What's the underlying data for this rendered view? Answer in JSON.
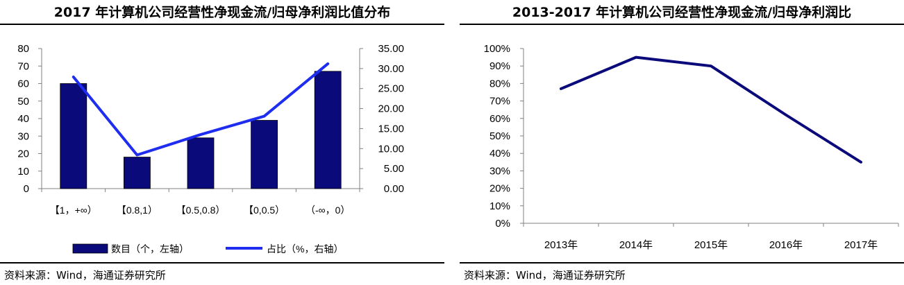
{
  "left": {
    "title": "2017 年计算机公司经营性净现金流/归母净利润比值分布",
    "source": "资料来源：Wind，海通证券研究所"
  },
  "right": {
    "title": "2013-2017 年计算机公司经营性净现金流/归母净利润比",
    "source": "资料来源：Wind，海通证券研究所"
  },
  "colors": {
    "bar": "#0a0a7a",
    "line_left": "#1e2df0",
    "line_right": "#0a0a7a",
    "axis": "#808080"
  },
  "chart_data": [
    {
      "type": "bar",
      "title": "2017 年计算机公司经营性净现金流/归母净利润比值分布",
      "categories": [
        "【1，+∞）",
        "【0.8,1）",
        "【0.5,0.8）",
        "【0,0.5）",
        "（-∞，0）"
      ],
      "series": [
        {
          "name": "数目（个，左轴）",
          "type": "bar",
          "axis": "left",
          "values": [
            60,
            18,
            29,
            39,
            67
          ]
        },
        {
          "name": "占比（%，右轴）",
          "type": "line",
          "axis": "right",
          "values": [
            27.9,
            8.4,
            13.5,
            18.1,
            31.2
          ]
        }
      ],
      "y_left": {
        "ylim": [
          0,
          80
        ],
        "ticks": [
          "0",
          "10",
          "20",
          "30",
          "40",
          "50",
          "60",
          "70",
          "80"
        ]
      },
      "y_right": {
        "ylim": [
          0,
          35
        ],
        "ticks": [
          "0.00",
          "5.00",
          "10.00",
          "15.00",
          "20.00",
          "25.00",
          "30.00",
          "35.00"
        ]
      },
      "grid": false,
      "legend_position": "bottom"
    },
    {
      "type": "line",
      "title": "2013-2017 年计算机公司经营性净现金流/归母净利润比",
      "categories": [
        "2013年",
        "2014年",
        "2015年",
        "2016年",
        "2017年"
      ],
      "series": [
        {
          "values": [
            77,
            95,
            90,
            62,
            35
          ]
        }
      ],
      "ylim": [
        0,
        100
      ],
      "y_ticks": [
        "0%",
        "10%",
        "20%",
        "30%",
        "40%",
        "50%",
        "60%",
        "70%",
        "80%",
        "90%",
        "100%"
      ],
      "grid": false
    }
  ]
}
